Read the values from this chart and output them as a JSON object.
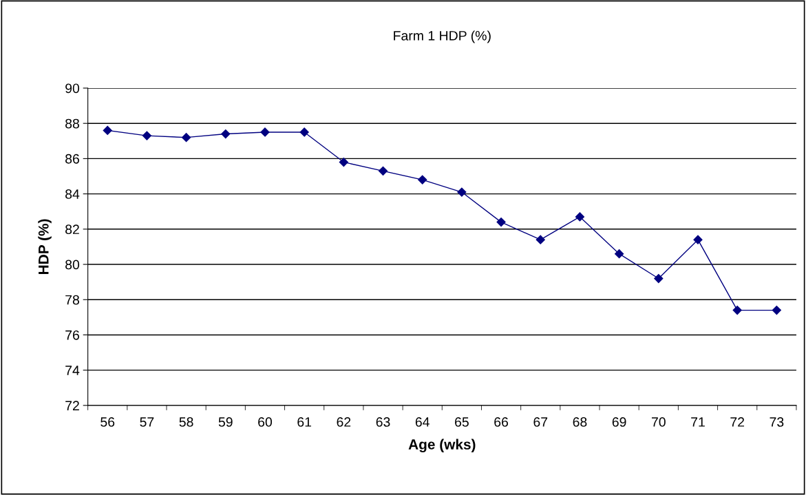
{
  "chart_data": {
    "type": "line",
    "title": "Farm 1 HDP (%)",
    "xlabel": "Age (wks)",
    "ylabel": "HDP (%)",
    "categories": [
      "56",
      "57",
      "58",
      "59",
      "60",
      "61",
      "62",
      "63",
      "64",
      "65",
      "66",
      "67",
      "68",
      "69",
      "70",
      "71",
      "72",
      "73"
    ],
    "series": [
      {
        "color": "#000080",
        "values": [
          87.6,
          87.3,
          87.2,
          87.4,
          87.5,
          87.5,
          85.8,
          85.3,
          84.8,
          84.1,
          82.4,
          81.4,
          82.7,
          80.6,
          79.2,
          81.4,
          77.4,
          77.4
        ]
      }
    ],
    "ylim": [
      72,
      90
    ],
    "yticks": [
      72,
      74,
      76,
      78,
      80,
      82,
      84,
      86,
      88,
      90
    ],
    "grid": "y",
    "legend": false,
    "marker": "diamond",
    "line_style": "solid"
  }
}
